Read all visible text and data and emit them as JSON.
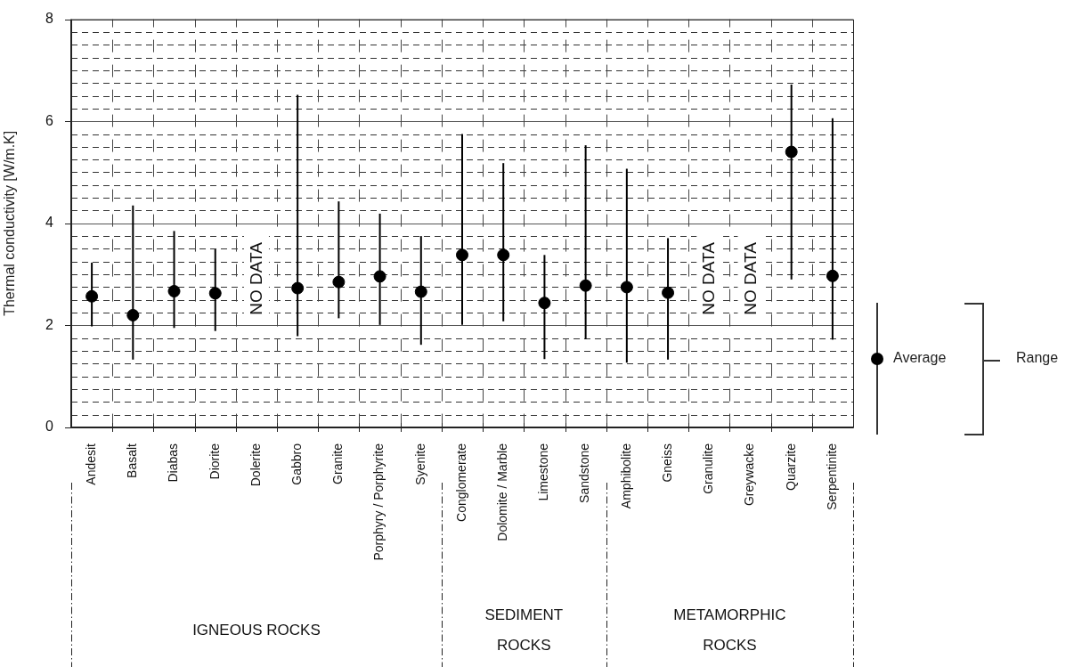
{
  "chart_data": {
    "type": "scatter",
    "ylabel": "Thermal conductivity [W/m.K]",
    "categories": [
      "Andesit",
      "Basalt",
      "Diabas",
      "Diorite",
      "Dolerite",
      "Gabbro",
      "Granite",
      "Porphyry / Porphyrite",
      "Syenite",
      "Conglomerate",
      "Dolomite / Marble",
      "Limestone",
      "Sandstone",
      "Amphibolite",
      "Gneiss",
      "Granulite",
      "Greywacke",
      "Quarzite",
      "Serpentinite"
    ],
    "series": [
      {
        "name": "Average",
        "color": "#000000",
        "values": [
          2.57,
          2.2,
          2.67,
          2.63,
          null,
          2.73,
          2.85,
          2.96,
          2.66,
          3.38,
          3.38,
          2.44,
          2.78,
          2.75,
          2.64,
          null,
          null,
          5.4,
          2.97
        ],
        "errors": [
          [
            1.98,
            3.23
          ],
          [
            1.33,
            4.35
          ],
          [
            1.95,
            3.85
          ],
          [
            1.89,
            3.49
          ],
          null,
          [
            1.79,
            6.52
          ],
          [
            2.14,
            4.43
          ],
          [
            2.01,
            4.19
          ],
          [
            1.62,
            3.75
          ],
          [
            2.01,
            5.75
          ],
          [
            2.08,
            5.18
          ],
          [
            1.34,
            3.38
          ],
          [
            1.73,
            5.53
          ],
          [
            1.27,
            5.07
          ],
          [
            1.33,
            3.71
          ],
          null,
          null,
          [
            2.9,
            6.72
          ],
          [
            1.72,
            6.06
          ]
        ]
      }
    ],
    "ylim": [
      0,
      8
    ],
    "yticks": [
      0,
      {
        "value": 0.25,
        "label": null
      },
      {
        "value": 0.5,
        "label": null
      },
      {
        "value": 0.75,
        "label": null
      },
      {
        "value": 1,
        "label": null
      },
      {
        "value": 1.25,
        "label": null
      },
      {
        "value": 1.5,
        "label": null
      },
      {
        "value": 1.75,
        "label": null
      },
      2,
      {
        "value": 2.25,
        "label": null
      },
      {
        "value": 2.5,
        "label": null
      },
      {
        "value": 2.75,
        "label": null
      },
      {
        "value": 3,
        "label": null
      },
      {
        "value": 3.25,
        "label": null
      },
      {
        "value": 3.5,
        "label": null
      },
      {
        "value": 3.75,
        "label": null
      },
      4,
      {
        "value": 4.25,
        "label": null
      },
      {
        "value": 4.5,
        "label": null
      },
      {
        "value": 4.75,
        "label": null
      },
      {
        "value": 5,
        "label": null
      },
      {
        "value": 5.25,
        "label": null
      },
      {
        "value": 5.5,
        "label": null
      },
      {
        "value": 5.75,
        "label": null
      },
      6,
      {
        "value": 6.25,
        "label": null
      },
      {
        "value": 6.5,
        "label": null
      },
      {
        "value": 6.75,
        "label": null
      },
      {
        "value": 7,
        "label": null
      },
      {
        "value": 7.25,
        "label": null
      },
      {
        "value": 7.5,
        "label": null
      },
      {
        "value": 7.75,
        "label": null
      },
      8
    ],
    "grid": true,
    "legend": "right",
    "marker": "circle",
    "annotations": [
      "IGNEOUS ROCKS",
      "SEDIMENT ROCKS",
      "METAMORPHIC ROCKS",
      "Range",
      "NO DATA",
      "NO DATA",
      "NO DATA"
    ]
  }
}
